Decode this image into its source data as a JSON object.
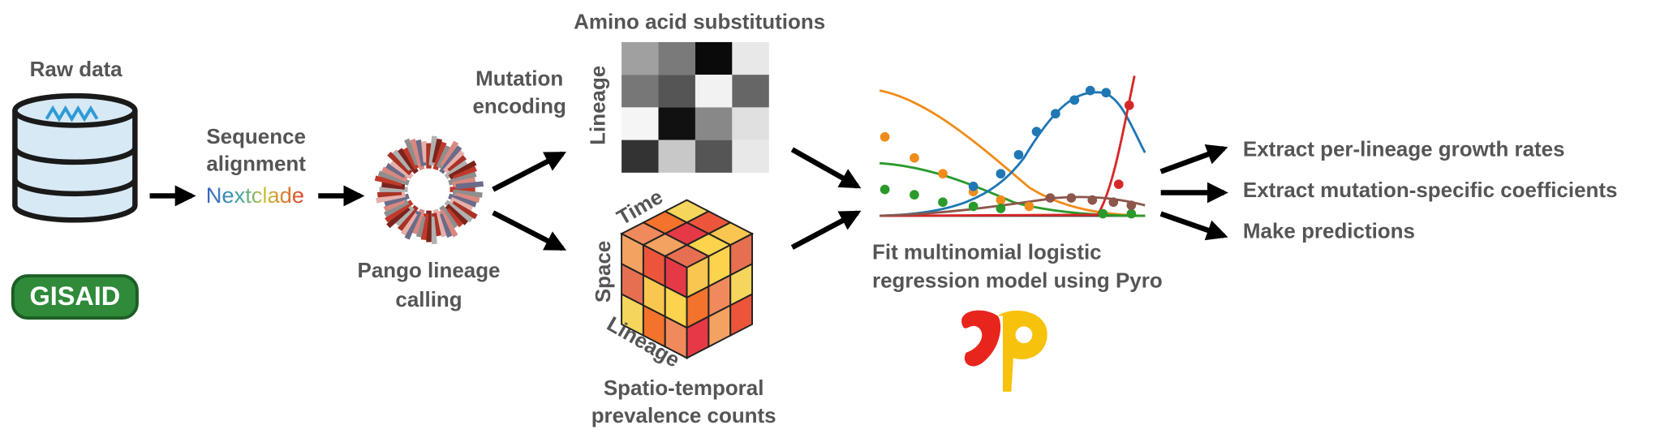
{
  "raw_data": {
    "title": "Raw data",
    "source": "GISAID"
  },
  "alignment": {
    "label": [
      "Sequence",
      "alignment"
    ],
    "tool": "Nextclade"
  },
  "lineage_calling": {
    "label": [
      "Pango lineage",
      "calling"
    ]
  },
  "mutation_encoding": {
    "label": [
      "Mutation",
      "encoding"
    ],
    "matrix_title": "Amino acid substitutions",
    "matrix_axis": "Lineage"
  },
  "prevalence": {
    "axes": [
      "Time",
      "Space",
      "Lineage"
    ],
    "label": [
      "Spatio-temporal",
      "prevalence counts"
    ]
  },
  "model": {
    "label": [
      "Fit multinomial logistic",
      "regression model using Pyro"
    ]
  },
  "outputs": [
    "Extract per-lineage growth rates",
    "Extract mutation-specific coefficients",
    "Make predictions"
  ]
}
